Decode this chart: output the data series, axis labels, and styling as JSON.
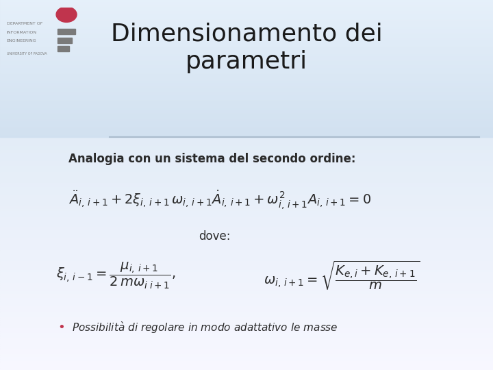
{
  "title_line1": "Dimensionamento dei",
  "title_line2": "parametri",
  "bg_color_top": "#d6e4f0",
  "bg_color_bottom": "#eef4fa",
  "title_color": "#1a1a1a",
  "text_color": "#2a2a2a",
  "subtitle_text": "Analogia con un sistema del secondo ordine:",
  "dove_text": "dove:",
  "bullet_color": "#c0344d",
  "separator_color": "#aabbcc",
  "logo_red": "#c0344d",
  "logo_gray": "#7a7a7a",
  "eq1": "$\\ddot{A}_{i,\\,i+1} + 2\\xi_{i,\\,i+1}\\,\\omega_{i,\\,i+1}\\dot{A}_{i,\\,i+1} + \\omega^{2}_{i,\\,i+1}A_{i,\\,i+1} = 0$",
  "eq2a": "$\\xi_{i,\\,i-1} = \\dfrac{\\mu_{i,\\,i+1}}{2\\,m\\omega_{i\\;i+1}},$",
  "eq2b": "$\\omega_{i,\\,i+1} = \\sqrt{\\dfrac{K_{e,i} + K_{e,\\,i+1}}{m}}$",
  "bullet_text": "Possibilit\\`{a} di regolare in modo adattativo le masse",
  "title_fontsize": 26,
  "subtitle_fontsize": 12,
  "eq1_fontsize": 14,
  "eq2_fontsize": 14,
  "dove_fontsize": 12,
  "bullet_fontsize": 11
}
